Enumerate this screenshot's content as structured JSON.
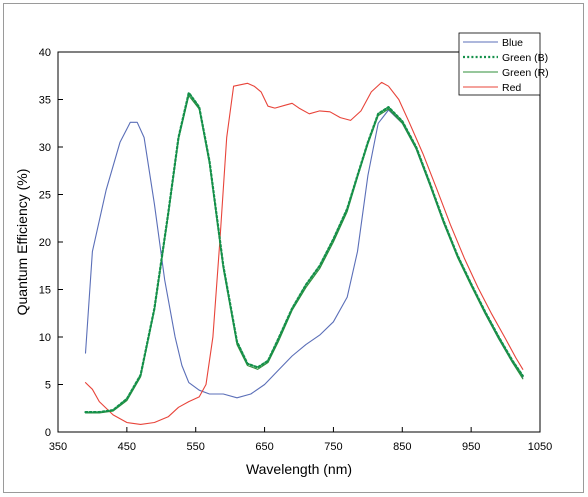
{
  "chart_data": {
    "type": "line",
    "xlabel": "Wavelength (nm)",
    "ylabel": "Quantum Efficiency (%)",
    "xlim": [
      350,
      1050
    ],
    "ylim": [
      0,
      40
    ],
    "x_ticks": [
      350,
      450,
      550,
      650,
      750,
      850,
      950,
      1050
    ],
    "y_ticks": [
      0,
      5,
      10,
      15,
      20,
      25,
      30,
      35,
      40
    ],
    "grid": false,
    "legend_position": "top-right",
    "series": [
      {
        "name": "Blue",
        "color": "#5b6fb8",
        "style": "solid",
        "points": [
          [
            390,
            8.3
          ],
          [
            400,
            19
          ],
          [
            420,
            25.5
          ],
          [
            440,
            30.5
          ],
          [
            455,
            32.6
          ],
          [
            465,
            32.6
          ],
          [
            475,
            31
          ],
          [
            490,
            24
          ],
          [
            505,
            16
          ],
          [
            520,
            10
          ],
          [
            530,
            7
          ],
          [
            540,
            5.2
          ],
          [
            555,
            4.4
          ],
          [
            570,
            4.0
          ],
          [
            590,
            4.0
          ],
          [
            610,
            3.6
          ],
          [
            630,
            4.0
          ],
          [
            650,
            5.0
          ],
          [
            670,
            6.5
          ],
          [
            690,
            8.0
          ],
          [
            710,
            9.2
          ],
          [
            730,
            10.2
          ],
          [
            750,
            11.6
          ],
          [
            770,
            14.2
          ],
          [
            785,
            19
          ],
          [
            800,
            27
          ],
          [
            815,
            32.5
          ],
          [
            830,
            33.9
          ],
          [
            850,
            32.5
          ],
          [
            870,
            29.8
          ],
          [
            890,
            26
          ],
          [
            910,
            22
          ],
          [
            930,
            18.5
          ],
          [
            950,
            15.5
          ],
          [
            970,
            12.5
          ],
          [
            990,
            9.8
          ],
          [
            1010,
            7.3
          ],
          [
            1025,
            5.7
          ]
        ]
      },
      {
        "name": "Green (B)",
        "color": "#14904a",
        "style": "dotted",
        "points": [
          [
            390,
            2.1
          ],
          [
            410,
            2.1
          ],
          [
            430,
            2.3
          ],
          [
            450,
            3.5
          ],
          [
            470,
            6
          ],
          [
            490,
            13
          ],
          [
            510,
            23
          ],
          [
            525,
            31
          ],
          [
            540,
            35.7
          ],
          [
            555,
            34.2
          ],
          [
            570,
            28.5
          ],
          [
            590,
            17.5
          ],
          [
            610,
            9.5
          ],
          [
            625,
            7.2
          ],
          [
            640,
            6.8
          ],
          [
            655,
            7.5
          ],
          [
            670,
            9.8
          ],
          [
            690,
            13
          ],
          [
            710,
            15.5
          ],
          [
            730,
            17.5
          ],
          [
            750,
            20.3
          ],
          [
            770,
            23.5
          ],
          [
            785,
            27
          ],
          [
            800,
            30.5
          ],
          [
            815,
            33.5
          ],
          [
            830,
            34.2
          ],
          [
            850,
            32.7
          ],
          [
            870,
            30
          ],
          [
            890,
            26.2
          ],
          [
            910,
            22.2
          ],
          [
            930,
            18.6
          ],
          [
            950,
            15.6
          ],
          [
            970,
            12.7
          ],
          [
            990,
            10
          ],
          [
            1010,
            7.5
          ],
          [
            1025,
            5.9
          ]
        ]
      },
      {
        "name": "Green (R)",
        "color": "#2f8f3a",
        "style": "solid",
        "points": [
          [
            390,
            2.0
          ],
          [
            410,
            2.0
          ],
          [
            430,
            2.2
          ],
          [
            450,
            3.3
          ],
          [
            470,
            5.8
          ],
          [
            490,
            12.8
          ],
          [
            510,
            22.8
          ],
          [
            525,
            30.8
          ],
          [
            540,
            35.4
          ],
          [
            555,
            34.0
          ],
          [
            570,
            28.2
          ],
          [
            590,
            17.2
          ],
          [
            610,
            9.2
          ],
          [
            625,
            7.0
          ],
          [
            640,
            6.6
          ],
          [
            655,
            7.3
          ],
          [
            670,
            9.5
          ],
          [
            690,
            12.8
          ],
          [
            710,
            15.2
          ],
          [
            730,
            17.2
          ],
          [
            750,
            20
          ],
          [
            770,
            23.2
          ],
          [
            785,
            26.8
          ],
          [
            800,
            30.3
          ],
          [
            815,
            33.3
          ],
          [
            830,
            34.0
          ],
          [
            850,
            32.5
          ],
          [
            870,
            29.8
          ],
          [
            890,
            26
          ],
          [
            910,
            22
          ],
          [
            930,
            18.4
          ],
          [
            950,
            15.4
          ],
          [
            970,
            12.5
          ],
          [
            990,
            9.8
          ],
          [
            1010,
            7.3
          ],
          [
            1025,
            5.6
          ]
        ]
      },
      {
        "name": "Red",
        "color": "#e8443a",
        "style": "solid",
        "points": [
          [
            390,
            5.2
          ],
          [
            400,
            4.5
          ],
          [
            410,
            3.2
          ],
          [
            430,
            1.8
          ],
          [
            450,
            1.0
          ],
          [
            470,
            0.8
          ],
          [
            490,
            1.0
          ],
          [
            510,
            1.6
          ],
          [
            525,
            2.6
          ],
          [
            540,
            3.2
          ],
          [
            555,
            3.7
          ],
          [
            565,
            5
          ],
          [
            575,
            10
          ],
          [
            585,
            20
          ],
          [
            595,
            31
          ],
          [
            605,
            36.4
          ],
          [
            625,
            36.7
          ],
          [
            635,
            36.4
          ],
          [
            645,
            35.8
          ],
          [
            655,
            34.3
          ],
          [
            665,
            34.1
          ],
          [
            680,
            34.4
          ],
          [
            690,
            34.6
          ],
          [
            700,
            34.1
          ],
          [
            715,
            33.5
          ],
          [
            730,
            33.8
          ],
          [
            745,
            33.7
          ],
          [
            760,
            33.1
          ],
          [
            775,
            32.8
          ],
          [
            790,
            33.8
          ],
          [
            805,
            35.8
          ],
          [
            820,
            36.8
          ],
          [
            830,
            36.4
          ],
          [
            845,
            35
          ],
          [
            860,
            32.6
          ],
          [
            880,
            29.3
          ],
          [
            900,
            25.6
          ],
          [
            920,
            21.8
          ],
          [
            940,
            18.3
          ],
          [
            960,
            15.2
          ],
          [
            980,
            12.4
          ],
          [
            1000,
            9.8
          ],
          [
            1015,
            7.8
          ],
          [
            1025,
            6.6
          ]
        ]
      }
    ]
  }
}
